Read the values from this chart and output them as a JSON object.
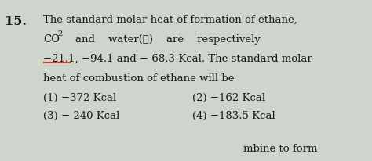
{
  "background_color": "#cdd5cc",
  "question_number": "15.",
  "line1": "The standard molar heat of formation of ethane,",
  "line3": "−21.1, −94.1 and − 68.3 Kcal. The standard molar",
  "line4": "heat of combustion of ethane will be",
  "opt1": "(1) −372 Kcal",
  "opt2": "(2) −162 Kcal",
  "opt3": "(3) − 240 Kcal",
  "opt4": "(4) −183.5 Kcal",
  "bottom_text": "mbine to form",
  "text_color": "#1a1a1a",
  "font_size_main": 9.5,
  "font_size_number": 11.5,
  "font_size_sub": 7
}
